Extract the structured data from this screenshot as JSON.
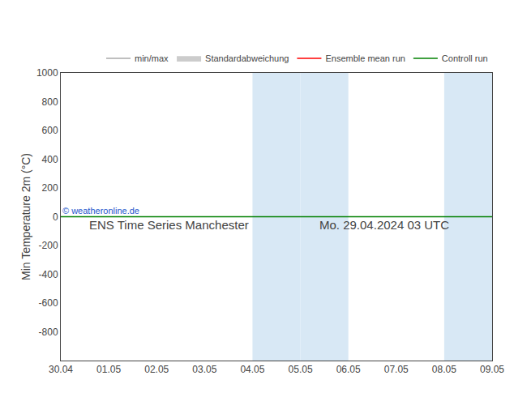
{
  "chart_data": {
    "type": "line",
    "title": "ENS Time Series Manchester",
    "subtitle": "Mo. 29.04.2024 03 UTC",
    "ylabel": "Min Temperature 2m (°C)",
    "categories": [
      "30.04",
      "01.05",
      "02.05",
      "03.05",
      "04.05",
      "05.05",
      "06.05",
      "07.05",
      "08.05",
      "09.05"
    ],
    "series": [
      {
        "name": "min/max",
        "color": "#aaaaaa",
        "values": [
          null,
          null,
          null,
          null,
          null,
          null,
          null,
          null,
          null,
          null
        ]
      },
      {
        "name": "Standardabweichung",
        "type": "area",
        "color": "#cccccc",
        "values": [
          null,
          null,
          null,
          null,
          null,
          null,
          null,
          null,
          null,
          null
        ]
      },
      {
        "name": "Ensemble mean run",
        "color": "red",
        "values": [
          null,
          null,
          null,
          null,
          null,
          null,
          null,
          null,
          null,
          null
        ]
      },
      {
        "name": "Controll run",
        "color": "green",
        "values": [
          0,
          0,
          0,
          0,
          0,
          0,
          0,
          0,
          0,
          0
        ]
      }
    ],
    "bands": [
      {
        "from": "04.05",
        "to": "05.05",
        "color": "#d8e8f5"
      },
      {
        "from": "05.05",
        "to": "06.05",
        "color": "#d8e8f5"
      },
      {
        "from": "08.05",
        "to": "09.05",
        "color": "#d8e8f5"
      }
    ],
    "annotations": [
      {
        "text": "© weatheronline.de",
        "x": "30.04",
        "y": 0,
        "color": "#2255cc"
      }
    ],
    "ylim": [
      -1000,
      1000
    ],
    "yticks": [
      -800,
      -600,
      -400,
      -200,
      0,
      200,
      400,
      600,
      800,
      1000
    ],
    "grid": false,
    "legend": "upper right"
  }
}
